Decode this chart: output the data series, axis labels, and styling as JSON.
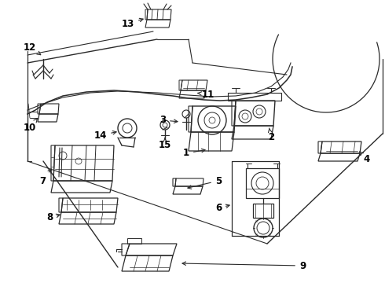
{
  "bg_color": "#ffffff",
  "line_color": "#2a2a2a",
  "text_color": "#000000",
  "fig_width": 4.9,
  "fig_height": 3.6,
  "dpi": 100
}
